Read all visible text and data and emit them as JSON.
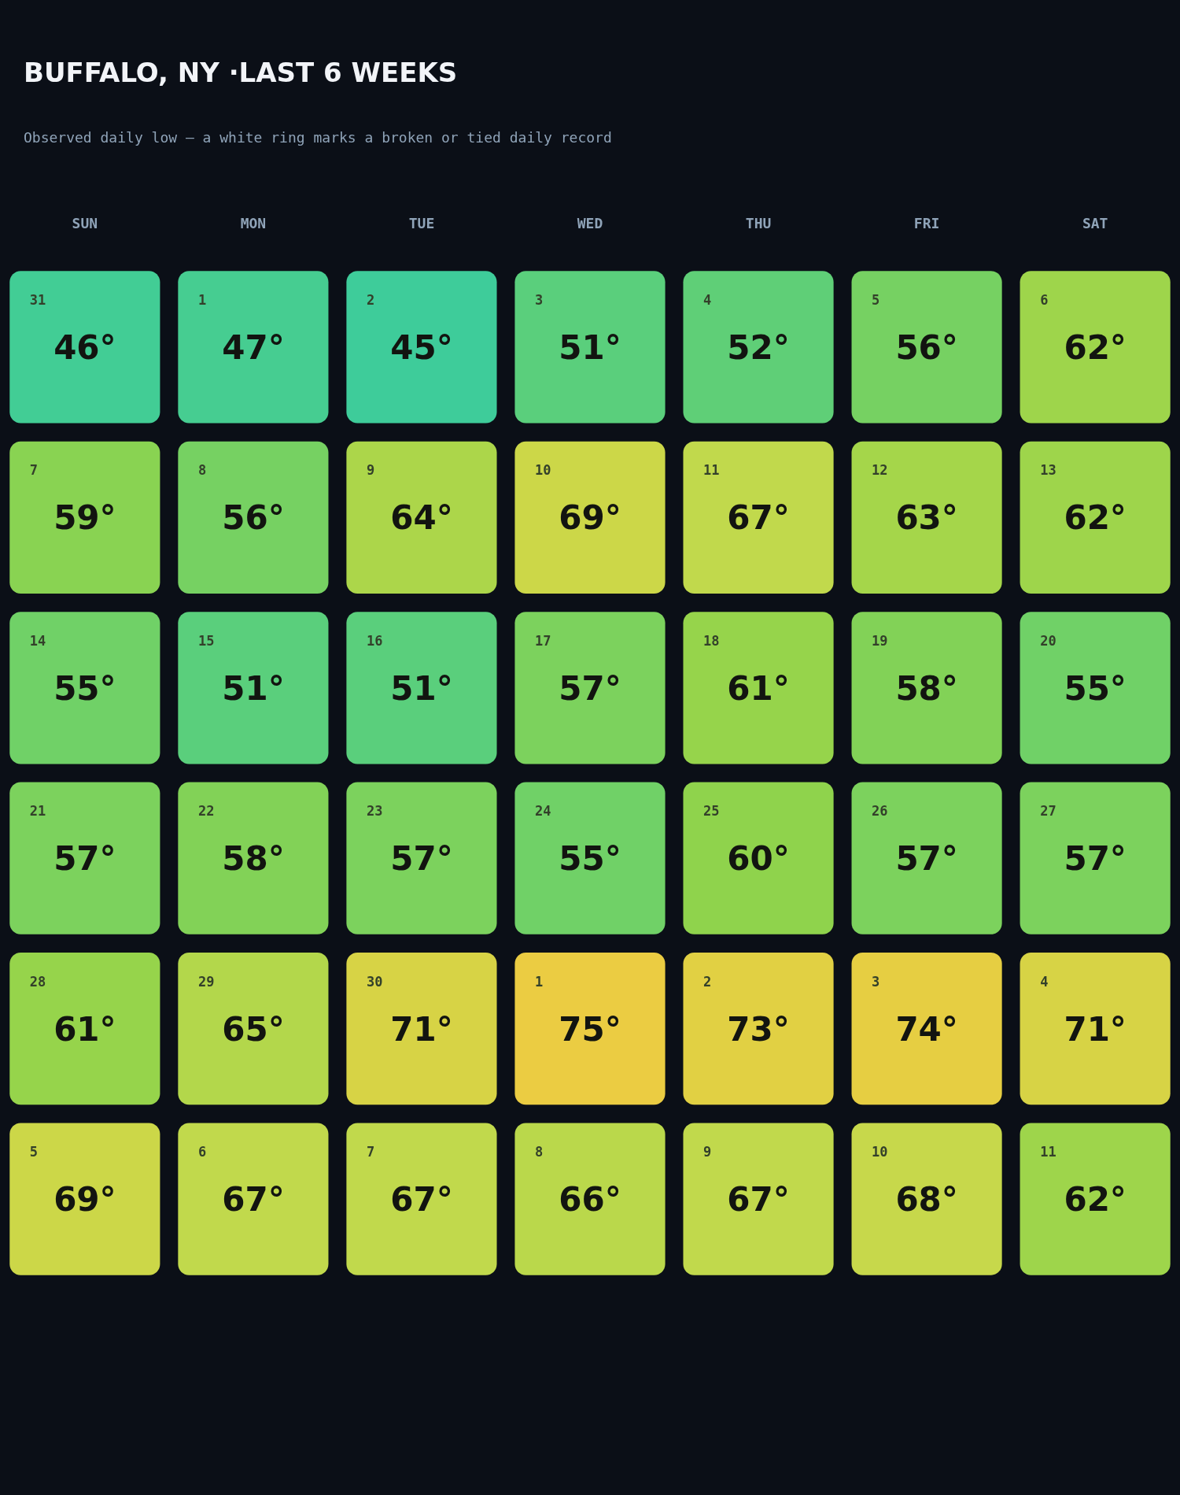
{
  "chart_data": {
    "type": "heatmap",
    "title": "BUFFALO, NY ·LAST 6 WEEKS",
    "subtitle": "Observed daily low — a white ring marks a broken or tied daily record",
    "categories": [
      "SUN",
      "MON",
      "TUE",
      "WED",
      "THU",
      "FRI",
      "SAT"
    ],
    "y_categories": [
      null,
      null,
      null,
      null,
      null,
      null
    ],
    "cells": [
      [
        46,
        47,
        45,
        51,
        52,
        56,
        62
      ],
      [
        59,
        56,
        64,
        69,
        67,
        63,
        62
      ],
      [
        55,
        51,
        51,
        57,
        61,
        58,
        55
      ],
      [
        57,
        58,
        57,
        55,
        60,
        57,
        57
      ],
      [
        61,
        65,
        71,
        75,
        73,
        74,
        71
      ],
      [
        69,
        67,
        67,
        66,
        67,
        68,
        62
      ]
    ],
    "cell_labels": [
      [
        "46°",
        "47°",
        "45°",
        "51°",
        "52°",
        "56°",
        "62°"
      ],
      [
        "59°",
        "56°",
        "64°",
        "69°",
        "67°",
        "63°",
        "62°"
      ],
      [
        "55°",
        "51°",
        "51°",
        "57°",
        "61°",
        "58°",
        "55°"
      ],
      [
        "57°",
        "58°",
        "57°",
        "55°",
        "60°",
        "57°",
        "57°"
      ],
      [
        "61°",
        "65°",
        "71°",
        "75°",
        "73°",
        "74°",
        "71°"
      ],
      [
        "69°",
        "67°",
        "67°",
        "66°",
        "67°",
        "68°",
        "62°"
      ]
    ],
    "annotations": [
      "31",
      "1",
      "2",
      "3",
      "4",
      "5",
      "6",
      "7",
      "8",
      "9",
      "10",
      "11",
      "12",
      "13",
      "14",
      "15",
      "16",
      "17",
      "18",
      "19",
      "20",
      "21",
      "22",
      "23",
      "24",
      "25",
      "26",
      "27",
      "28",
      "29",
      "30",
      "1",
      "2",
      "3",
      "4",
      "5",
      "6",
      "7",
      "8",
      "9",
      "10",
      "11"
    ]
  }
}
